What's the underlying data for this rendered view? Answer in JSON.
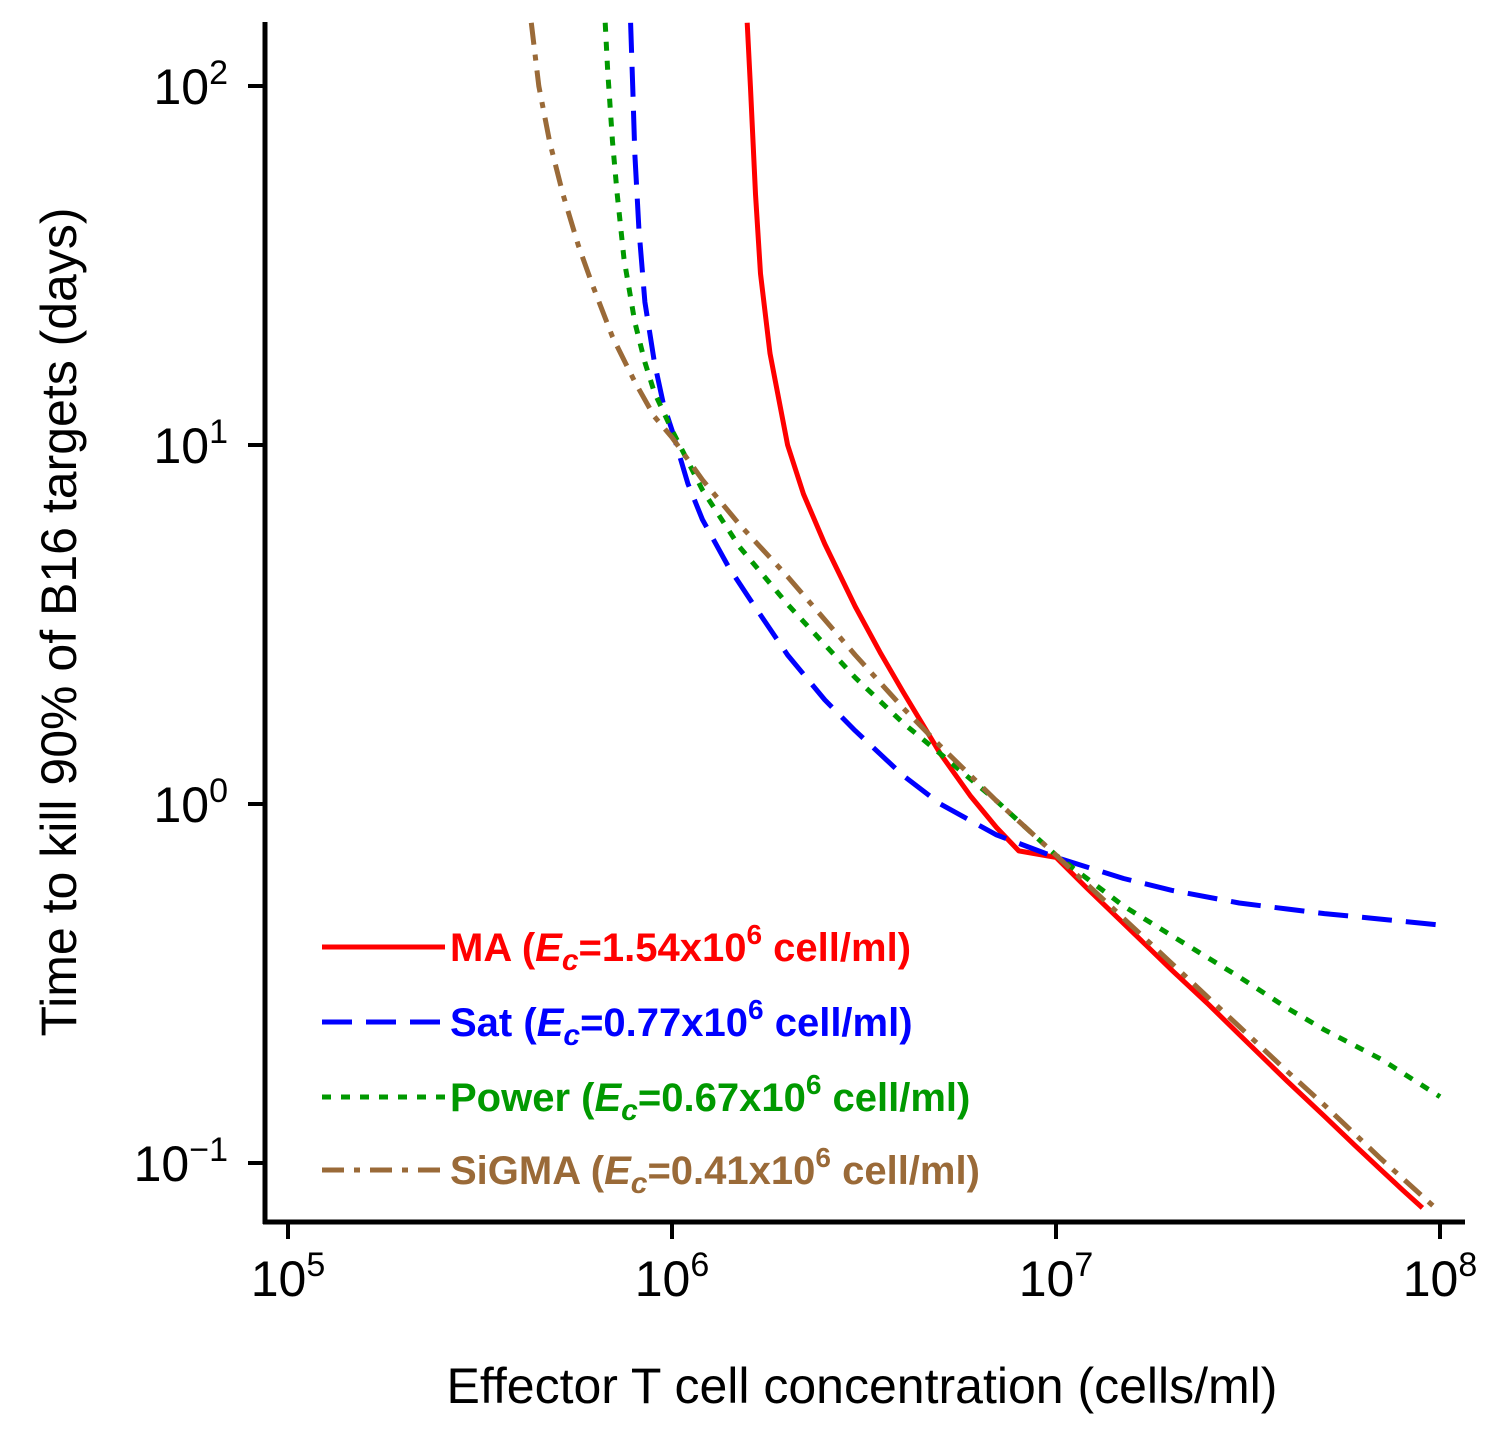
{
  "chart_data": {
    "type": "line",
    "xscale": "log",
    "yscale": "log",
    "xlabel": "Effector T cell concentration (cells/ml)",
    "ylabel": "Time to kill 90% of B16 targets (days)",
    "xlim": [
      80000,
      130000000
    ],
    "ylim": [
      0.07,
      150
    ],
    "xticks": [
      {
        "value": 100000,
        "base": "10",
        "exp": "5"
      },
      {
        "value": 1000000,
        "base": "10",
        "exp": "6"
      },
      {
        "value": 10000000,
        "base": "10",
        "exp": "7"
      },
      {
        "value": 100000000,
        "base": "10",
        "exp": "8"
      }
    ],
    "yticks": [
      {
        "value": 0.1,
        "base": "10",
        "exp": "−1"
      },
      {
        "value": 1,
        "base": "10",
        "exp": "0"
      },
      {
        "value": 10,
        "base": "10",
        "exp": "1"
      },
      {
        "value": 100,
        "base": "10",
        "exp": "2"
      }
    ],
    "legend_position": "bottom-left",
    "series": [
      {
        "name": "MA",
        "legend": {
          "prefix": "MA (",
          "var": "E",
          "sub": "c",
          "value": "=1.54x10",
          "sup": "6",
          "suffix": " cell/ml)"
        },
        "color": "#ff0000",
        "dash": "solid",
        "x": [
          1570000,
          1600000,
          1650000,
          1700000,
          1800000,
          2000000,
          2200000,
          2500000,
          3000000,
          3500000,
          4000000,
          5000000,
          6000000,
          7000000,
          8000000,
          10000000,
          12000000,
          15000000,
          20000000,
          25000000,
          30000000,
          40000000,
          50000000,
          60000000,
          70000000,
          80000000,
          90000000
        ],
        "y": [
          150,
          100,
          50,
          30,
          18,
          10,
          7.3,
          5.3,
          3.55,
          2.62,
          2.05,
          1.38,
          1.05,
          0.86,
          0.74,
          0.71,
          0.585,
          0.465,
          0.345,
          0.276,
          0.228,
          0.169,
          0.135,
          0.112,
          0.096,
          0.084,
          0.075
        ]
      },
      {
        "name": "Sat",
        "legend": {
          "prefix": "Sat (",
          "var": "E",
          "sub": "c",
          "value": "=0.77x10",
          "sup": "6",
          "suffix": " cell/ml)"
        },
        "color": "#0000ff",
        "dash": "dashed",
        "x": [
          780000,
          790000,
          800000,
          820000,
          850000,
          900000,
          950000,
          1000000,
          1100000,
          1200000,
          1400000,
          1600000,
          2000000,
          2500000,
          3000000,
          4000000,
          5000000,
          7000000,
          10000000,
          15000000,
          20000000,
          30000000,
          40000000,
          50000000,
          70000000,
          100000000
        ],
        "y": [
          150,
          100,
          65,
          40,
          25,
          17,
          13,
          11,
          7.8,
          6.2,
          4.6,
          3.7,
          2.6,
          1.95,
          1.6,
          1.2,
          1.0,
          0.82,
          0.71,
          0.62,
          0.575,
          0.53,
          0.51,
          0.495,
          0.478,
          0.46
        ]
      },
      {
        "name": "Power",
        "legend": {
          "prefix": "Power (",
          "var": "E",
          "sub": "c",
          "value": "=0.67x10",
          "sup": "6",
          "suffix": " cell/ml)"
        },
        "color": "#009900",
        "dash": "dotted",
        "x": [
          670000,
          680000,
          700000,
          720000,
          750000,
          800000,
          850000,
          900000,
          1000000,
          1200000,
          1500000,
          2000000,
          3000000,
          4000000,
          5000000,
          7000000,
          10000000,
          15000000,
          20000000,
          30000000,
          40000000,
          50000000,
          70000000,
          100000000
        ],
        "y": [
          150,
          110,
          70,
          50,
          33,
          22,
          17,
          14,
          11,
          7.5,
          5.2,
          3.6,
          2.25,
          1.68,
          1.38,
          1.02,
          0.72,
          0.52,
          0.43,
          0.33,
          0.27,
          0.235,
          0.195,
          0.153
        ]
      },
      {
        "name": "SiGMA",
        "legend": {
          "prefix": "SiGMA (",
          "var": "E",
          "sub": "c",
          "value": "=0.41x10",
          "sup": "6",
          "suffix": " cell/ml)"
        },
        "color": "#9a6a38",
        "dash": "dashdot",
        "x": [
          430000,
          450000,
          480000,
          520000,
          570000,
          620000,
          700000,
          800000,
          900000,
          1000000,
          1200000,
          1500000,
          2000000,
          3000000,
          4000000,
          5000000,
          7000000,
          10000000,
          15000000,
          20000000,
          30000000,
          40000000,
          50000000,
          70000000,
          100000000
        ],
        "y": [
          150,
          100,
          70,
          50,
          36,
          28,
          20,
          15,
          12,
          10.5,
          8.0,
          6.0,
          4.3,
          2.6,
          1.85,
          1.45,
          1.02,
          0.72,
          0.48,
          0.36,
          0.24,
          0.18,
          0.145,
          0.103,
          0.073
        ]
      }
    ]
  }
}
